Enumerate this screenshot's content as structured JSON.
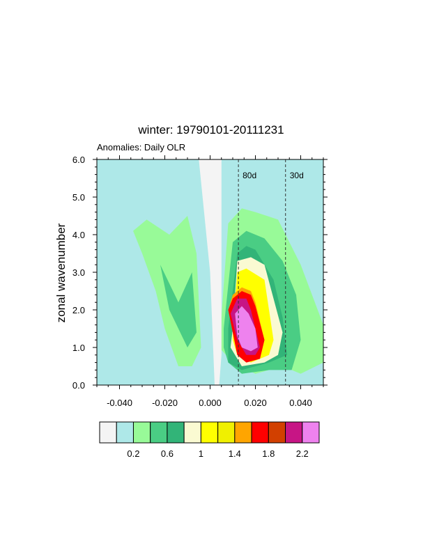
{
  "chart_data": {
    "type": "heatmap",
    "title": "winter: 19790101-20111231",
    "subtitle": "Anomalies: Daily OLR",
    "xlabel": "",
    "ylabel": "zonal wavenumber",
    "xlim": [
      -0.05,
      0.05
    ],
    "ylim": [
      0,
      6
    ],
    "x_ticks": [
      "-0.040",
      "-0.020",
      "0.000",
      "0.020",
      "0.040"
    ],
    "x_tick_values": [
      -0.04,
      -0.02,
      0.0,
      0.02,
      0.04
    ],
    "y_ticks": [
      "0.0",
      "1.0",
      "2.0",
      "3.0",
      "4.0",
      "5.0",
      "6.0"
    ],
    "y_tick_values": [
      0,
      1,
      2,
      3,
      4,
      5,
      6
    ],
    "reference_lines": [
      {
        "label": "80d",
        "x": 0.0125
      },
      {
        "label": "30d",
        "x": 0.0333
      }
    ],
    "colorbar": {
      "colors": [
        "#f4f4f4",
        "#aee8e8",
        "#98fa98",
        "#4acd84",
        "#32b478",
        "#fafad2",
        "#ffff00",
        "#f0f000",
        "#ffa500",
        "#ff0000",
        "#d24000",
        "#c71585",
        "#ee82ee"
      ],
      "labels": [
        "0.2",
        "0.6",
        "1",
        "1.4",
        "1.8",
        "2.2"
      ],
      "levels": [
        0.1,
        0.2,
        0.4,
        0.6,
        0.8,
        1.0,
        1.2,
        1.4,
        1.6,
        1.8,
        2.0,
        2.2
      ],
      "labeled_boundaries": [
        1,
        3,
        5,
        7,
        9,
        11
      ]
    },
    "fields": [
      {
        "level": 1,
        "x": [
          -0.05,
          -0.05,
          -0.04,
          0.0,
          0.05,
          0.05,
          0.04,
          0.03,
          0.02,
          0.01,
          -0.01,
          -0.03,
          -0.05
        ],
        "y": [
          0.3,
          6.0,
          6.0,
          6.0,
          6.0,
          5.4,
          5.1,
          5.2,
          5.6,
          6.0,
          5.8,
          5.6,
          5.0
        ]
      },
      {
        "level": 2,
        "x": [
          -0.034,
          -0.028,
          -0.018,
          -0.01,
          -0.006,
          -0.004,
          -0.008,
          -0.014,
          -0.02,
          -0.024,
          -0.03
        ],
        "y": [
          4.1,
          4.4,
          4.0,
          4.5,
          3.5,
          1.0,
          0.5,
          0.5,
          1.5,
          2.5,
          3.5
        ]
      },
      {
        "level": 2,
        "x": [
          0.004,
          0.008,
          0.014,
          0.02,
          0.03,
          0.04,
          0.05,
          0.05,
          0.04,
          0.032,
          0.02,
          0.01,
          0.004
        ],
        "y": [
          1.0,
          4.3,
          4.7,
          4.6,
          4.4,
          3.2,
          1.6,
          0.6,
          0.3,
          0.5,
          0.3,
          0.6,
          1.0
        ]
      },
      {
        "level": 3,
        "x": [
          -0.022,
          -0.014,
          -0.008,
          -0.006,
          -0.01,
          -0.018
        ],
        "y": [
          3.2,
          2.2,
          3.0,
          1.4,
          1.0,
          2.0
        ]
      },
      {
        "level": 3,
        "x": [
          0.006,
          0.01,
          0.016,
          0.024,
          0.032,
          0.038,
          0.04,
          0.036,
          0.026,
          0.014,
          0.008,
          0.006
        ],
        "y": [
          1.5,
          3.8,
          4.1,
          3.9,
          3.3,
          2.4,
          1.2,
          0.4,
          0.4,
          0.3,
          0.6,
          1.0
        ]
      },
      {
        "level": 4,
        "x": [
          0.008,
          0.012,
          0.016,
          0.02,
          0.028,
          0.032,
          0.034,
          0.026,
          0.014,
          0.008
        ],
        "y": [
          1.5,
          3.5,
          3.7,
          3.6,
          2.8,
          1.8,
          0.8,
          0.6,
          0.4,
          0.6
        ]
      },
      {
        "level": 5,
        "x": [
          0.01,
          0.012,
          0.018,
          0.024,
          0.028,
          0.032,
          0.03,
          0.024,
          0.014,
          0.009
        ],
        "y": [
          1.5,
          3.3,
          3.4,
          3.2,
          2.3,
          1.4,
          0.8,
          0.6,
          0.5,
          1.0
        ]
      },
      {
        "level": 6,
        "x": [
          0.01,
          0.012,
          0.016,
          0.024,
          0.026,
          0.028,
          0.026,
          0.018,
          0.012,
          0.01
        ],
        "y": [
          1.5,
          3.0,
          3.1,
          2.8,
          2.0,
          1.2,
          0.8,
          0.6,
          0.8,
          1.2
        ]
      },
      {
        "level": 8,
        "x": [
          0.008,
          0.01,
          0.014,
          0.018,
          0.02,
          0.024,
          0.022,
          0.016,
          0.012,
          0.01
        ],
        "y": [
          2.0,
          2.4,
          2.6,
          2.5,
          2.2,
          1.2,
          0.7,
          0.6,
          0.8,
          1.4
        ]
      },
      {
        "level": 9,
        "x": [
          0.008,
          0.01,
          0.014,
          0.018,
          0.02,
          0.024,
          0.022,
          0.016,
          0.012,
          0.01
        ],
        "y": [
          2.0,
          2.3,
          2.5,
          2.4,
          2.1,
          1.2,
          0.7,
          0.6,
          0.8,
          1.4
        ]
      },
      {
        "level": 11,
        "x": [
          0.009,
          0.012,
          0.016,
          0.018,
          0.022,
          0.02,
          0.016,
          0.012
        ],
        "y": [
          1.9,
          2.3,
          2.3,
          2.0,
          1.0,
          0.8,
          0.8,
          1.2
        ]
      },
      {
        "level": 12,
        "x": [
          0.011,
          0.014,
          0.017,
          0.02,
          0.021,
          0.018,
          0.014,
          0.012
        ],
        "y": [
          1.9,
          2.1,
          1.9,
          1.5,
          1.0,
          0.9,
          1.0,
          1.3
        ]
      }
    ],
    "holes": [
      {
        "level": 0,
        "x": [
          -0.005,
          0.0,
          0.005,
          0.005,
          0.004,
          0.002,
          0.0
        ],
        "y": [
          6.0,
          6.0,
          6.0,
          0.8,
          0.0,
          0.0,
          3.0
        ]
      }
    ]
  }
}
